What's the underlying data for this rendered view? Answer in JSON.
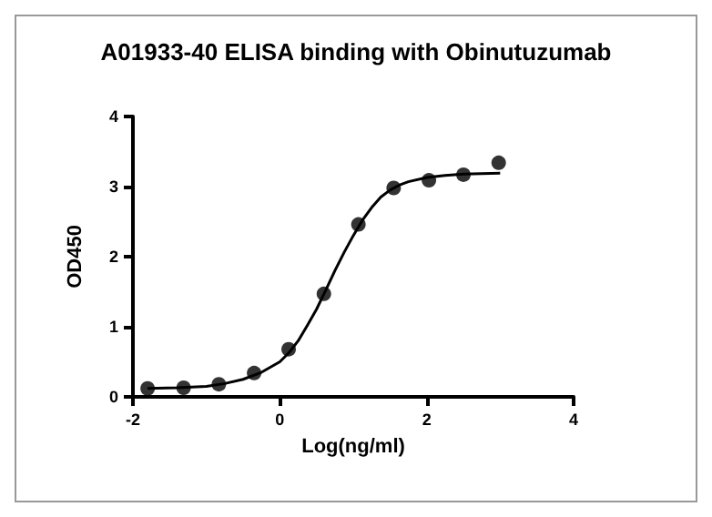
{
  "chart_data": {
    "type": "scatter",
    "title": "A01933-40 ELISA binding with Obinutuzumab",
    "xlabel": "Log(ng/ml)",
    "ylabel": "OD450",
    "xlim": [
      -2,
      4
    ],
    "xticks": [
      -2,
      0,
      2,
      4
    ],
    "ylim": [
      0,
      4
    ],
    "yticks": [
      0,
      1,
      2,
      3,
      4
    ],
    "grid": false,
    "marker": "circle",
    "series": [
      {
        "color": "#000000",
        "x": [
          -1.8,
          -1.31,
          -0.83,
          -0.35,
          0.12,
          0.6,
          1.07,
          1.55,
          2.03,
          2.5,
          2.98
        ],
        "values": [
          0.12,
          0.13,
          0.18,
          0.34,
          0.68,
          1.47,
          2.46,
          2.98,
          3.09,
          3.17,
          3.34
        ]
      },
      {
        "type": "line",
        "color": "#000000",
        "marker": "none",
        "x": [
          -1.8,
          -1.4,
          -1,
          -0.75,
          -0.5,
          -0.25,
          0,
          0.125,
          0.25,
          0.375,
          0.5,
          0.625,
          0.75,
          0.875,
          1,
          1.125,
          1.25,
          1.375,
          1.5,
          1.625,
          1.75,
          2,
          2.25,
          2.5,
          3
        ],
        "values": [
          0.12,
          0.13,
          0.15,
          0.19,
          0.25,
          0.35,
          0.5,
          0.63,
          0.8,
          1.02,
          1.25,
          1.52,
          1.8,
          2.06,
          2.3,
          2.52,
          2.7,
          2.85,
          2.95,
          3.02,
          3.07,
          3.13,
          3.16,
          3.18,
          3.19
        ]
      }
    ]
  }
}
